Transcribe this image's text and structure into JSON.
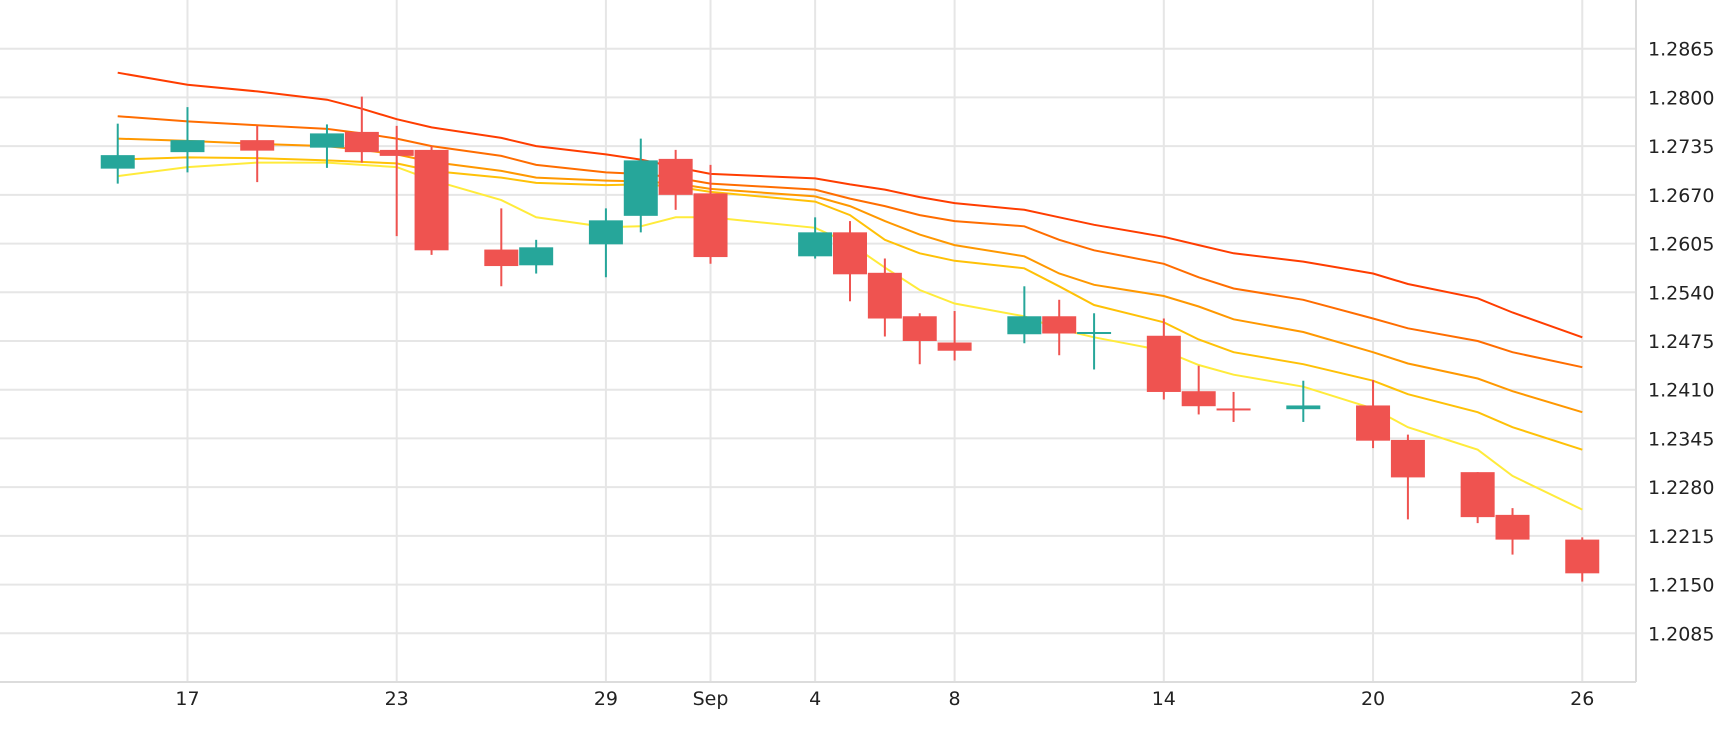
{
  "chart_data": {
    "type": "candlestick",
    "x_ticks": [
      {
        "label": "17",
        "date": "2022-08-17"
      },
      {
        "label": "23",
        "date": "2022-08-23"
      },
      {
        "label": "29",
        "date": "2022-08-29"
      },
      {
        "label": "Sep",
        "date": "2022-09-01"
      },
      {
        "label": "4",
        "date": "2022-09-04"
      },
      {
        "label": "8",
        "date": "2022-09-08"
      },
      {
        "label": "14",
        "date": "2022-09-14"
      },
      {
        "label": "20",
        "date": "2022-09-20"
      },
      {
        "label": "26",
        "date": "2022-09-26"
      }
    ],
    "y_ticks": [
      "1.2865",
      "1.2800",
      "1.2735",
      "1.2670",
      "1.2605",
      "1.2540",
      "1.2475",
      "1.2410",
      "1.2345",
      "1.2280",
      "1.2215",
      "1.2150",
      "1.2085"
    ],
    "ylim": [
      1.202,
      1.293
    ],
    "xlim": [
      "2022-08-13",
      "2022-09-28"
    ],
    "grid": true,
    "up_color": "#26a69a",
    "down_color": "#ef5350",
    "candles": [
      {
        "date": "2022-08-15",
        "open": 1.2705,
        "high": 1.2765,
        "low": 1.2685,
        "close": 1.2723
      },
      {
        "date": "2022-08-17",
        "open": 1.2727,
        "high": 1.2787,
        "low": 1.27,
        "close": 1.2743
      },
      {
        "date": "2022-08-19",
        "open": 1.2743,
        "high": 1.2762,
        "low": 1.2687,
        "close": 1.2729
      },
      {
        "date": "2022-08-21",
        "open": 1.2733,
        "high": 1.2764,
        "low": 1.2706,
        "close": 1.2752
      },
      {
        "date": "2022-08-22",
        "open": 1.2754,
        "high": 1.2801,
        "low": 1.2713,
        "close": 1.2727
      },
      {
        "date": "2022-08-23",
        "open": 1.273,
        "high": 1.2762,
        "low": 1.2615,
        "close": 1.2722
      },
      {
        "date": "2022-08-24",
        "open": 1.273,
        "high": 1.2735,
        "low": 1.259,
        "close": 1.2596
      },
      {
        "date": "2022-08-26",
        "open": 1.2597,
        "high": 1.2652,
        "low": 1.2548,
        "close": 1.2575
      },
      {
        "date": "2022-08-27",
        "open": 1.2576,
        "high": 1.261,
        "low": 1.2565,
        "close": 1.26
      },
      {
        "date": "2022-08-29",
        "open": 1.2604,
        "high": 1.2652,
        "low": 1.256,
        "close": 1.2636
      },
      {
        "date": "2022-08-30",
        "open": 1.2642,
        "high": 1.2745,
        "low": 1.262,
        "close": 1.2716
      },
      {
        "date": "2022-08-31",
        "open": 1.2718,
        "high": 1.273,
        "low": 1.265,
        "close": 1.267
      },
      {
        "date": "2022-09-01",
        "open": 1.2672,
        "high": 1.271,
        "low": 1.2578,
        "close": 1.2587
      },
      {
        "date": "2022-09-04",
        "open": 1.2588,
        "high": 1.264,
        "low": 1.2585,
        "close": 1.262
      },
      {
        "date": "2022-09-05",
        "open": 1.262,
        "high": 1.2635,
        "low": 1.2528,
        "close": 1.2564
      },
      {
        "date": "2022-09-06",
        "open": 1.2566,
        "high": 1.2585,
        "low": 1.2481,
        "close": 1.2505
      },
      {
        "date": "2022-09-07",
        "open": 1.2508,
        "high": 1.2512,
        "low": 1.2444,
        "close": 1.2475
      },
      {
        "date": "2022-09-08",
        "open": 1.2473,
        "high": 1.2515,
        "low": 1.2449,
        "close": 1.2462
      },
      {
        "date": "2022-09-10",
        "open": 1.2484,
        "high": 1.2548,
        "low": 1.2472,
        "close": 1.2508
      },
      {
        "date": "2022-09-11",
        "open": 1.2508,
        "high": 1.253,
        "low": 1.2456,
        "close": 1.2485
      },
      {
        "date": "2022-09-12",
        "open": 1.2485,
        "high": 1.2512,
        "low": 1.2437,
        "close": 1.2487
      },
      {
        "date": "2022-09-14",
        "open": 1.2482,
        "high": 1.2505,
        "low": 1.2397,
        "close": 1.2407
      },
      {
        "date": "2022-09-15",
        "open": 1.2408,
        "high": 1.2442,
        "low": 1.2377,
        "close": 1.2388
      },
      {
        "date": "2022-09-16",
        "open": 1.2385,
        "high": 1.2407,
        "low": 1.2367,
        "close": 1.2383
      },
      {
        "date": "2022-09-18",
        "open": 1.2384,
        "high": 1.2422,
        "low": 1.2367,
        "close": 1.2389
      },
      {
        "date": "2022-09-20",
        "open": 1.2389,
        "high": 1.2423,
        "low": 1.2332,
        "close": 1.2342
      },
      {
        "date": "2022-09-21",
        "open": 1.2343,
        "high": 1.235,
        "low": 1.2237,
        "close": 1.2293
      },
      {
        "date": "2022-09-23",
        "open": 1.23,
        "high": 1.23,
        "low": 1.2232,
        "close": 1.224
      },
      {
        "date": "2022-09-24",
        "open": 1.2243,
        "high": 1.2252,
        "low": 1.219,
        "close": 1.221
      },
      {
        "date": "2022-09-26",
        "open": 1.221,
        "high": 1.2213,
        "low": 1.2154,
        "close": 1.2165
      }
    ],
    "moving_averages": [
      {
        "color": "#ffeb3b",
        "values": [
          1.2695,
          1.2707,
          1.2713,
          1.2713,
          1.271,
          1.2707,
          1.269,
          1.2663,
          1.264,
          1.2627,
          1.2628,
          1.264,
          1.264,
          1.2626,
          1.2605,
          1.2573,
          1.2543,
          1.2525,
          1.2508,
          1.2491,
          1.248,
          1.2462,
          1.2443,
          1.243,
          1.2414,
          1.2385,
          1.236,
          1.233,
          1.2295,
          1.225
        ]
      },
      {
        "color": "#ffc107",
        "values": [
          1.2717,
          1.272,
          1.2719,
          1.2716,
          1.2714,
          1.2712,
          1.2702,
          1.2693,
          1.2686,
          1.2683,
          1.2684,
          1.2681,
          1.2674,
          1.2661,
          1.2643,
          1.261,
          1.2592,
          1.2582,
          1.2572,
          1.2548,
          1.2523,
          1.25,
          1.2477,
          1.246,
          1.2444,
          1.2422,
          1.2404,
          1.238,
          1.236,
          1.233
        ]
      },
      {
        "color": "#ff9800",
        "values": [
          1.2745,
          1.2742,
          1.2738,
          1.2735,
          1.273,
          1.2724,
          1.2714,
          1.2702,
          1.2693,
          1.2689,
          1.2688,
          1.2685,
          1.2678,
          1.2668,
          1.2655,
          1.2635,
          1.2617,
          1.2603,
          1.2588,
          1.2565,
          1.255,
          1.2535,
          1.2521,
          1.2504,
          1.2487,
          1.246,
          1.2445,
          1.2425,
          1.2408,
          1.238
        ]
      },
      {
        "color": "#ff6d00",
        "values": [
          1.2775,
          1.2768,
          1.2763,
          1.2758,
          1.2752,
          1.2745,
          1.2735,
          1.2722,
          1.271,
          1.27,
          1.2698,
          1.2693,
          1.2685,
          1.2677,
          1.2665,
          1.2655,
          1.2643,
          1.2635,
          1.2628,
          1.261,
          1.2596,
          1.2578,
          1.256,
          1.2545,
          1.253,
          1.2505,
          1.2492,
          1.2475,
          1.246,
          1.244
        ]
      },
      {
        "color": "#ff3d00",
        "values": [
          1.2833,
          1.2817,
          1.2808,
          1.2797,
          1.2785,
          1.2771,
          1.276,
          1.2746,
          1.2735,
          1.2724,
          1.2717,
          1.2707,
          1.2698,
          1.2692,
          1.2684,
          1.2677,
          1.2667,
          1.2659,
          1.265,
          1.264,
          1.263,
          1.2614,
          1.2603,
          1.2592,
          1.2581,
          1.2565,
          1.2551,
          1.2532,
          1.2513,
          1.248
        ]
      }
    ]
  }
}
